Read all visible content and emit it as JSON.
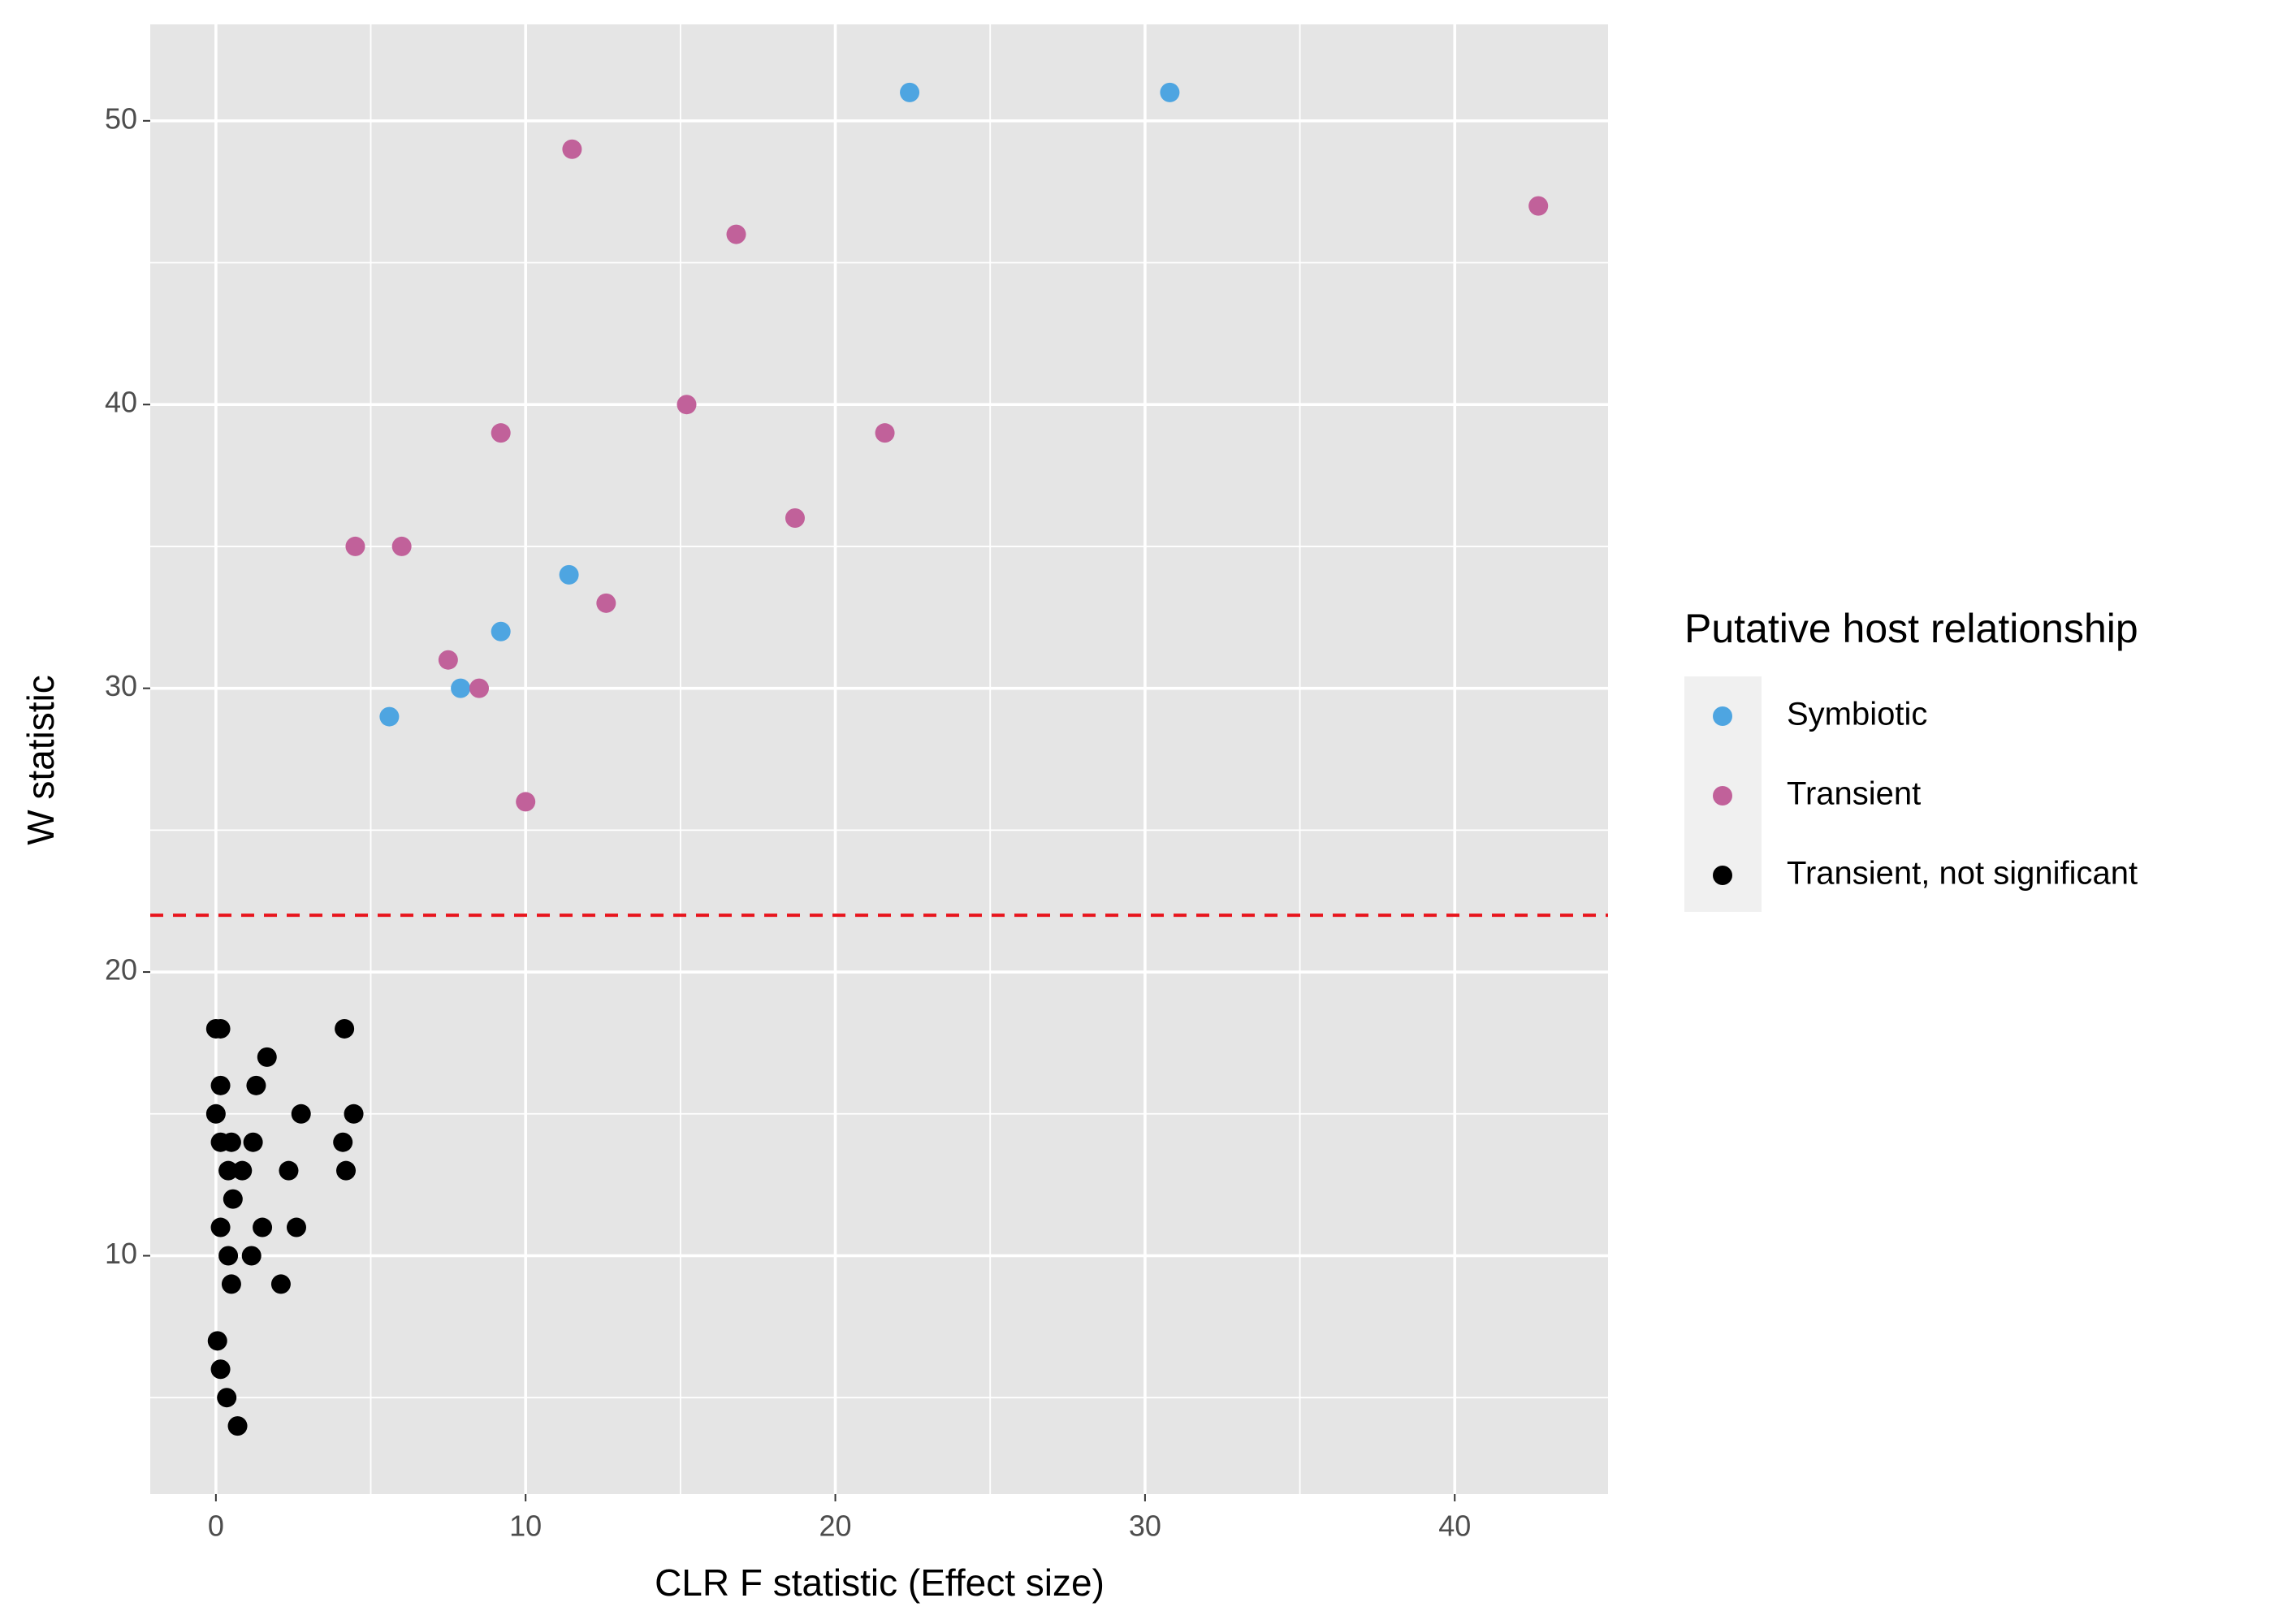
{
  "chart_data": {
    "type": "scatter",
    "x_label": "CLR F statistic (Effect size)",
    "y_label": "W statistic",
    "legend_title": "Putative host relationship",
    "legend_position": "right",
    "grid": true,
    "xlim": [
      -2.12,
      44.95
    ],
    "ylim": [
      1.6,
      53.4
    ],
    "xticks": [
      0,
      10,
      20,
      30,
      40
    ],
    "yticks": [
      10,
      20,
      30,
      40,
      50
    ],
    "xminor": [
      5,
      15,
      25,
      35
    ],
    "yminor": [
      5,
      15,
      25,
      35,
      45
    ],
    "hline": {
      "value": 22,
      "color": "#e8141c"
    },
    "series": [
      {
        "name": "Symbiotic",
        "color": "#4ea5e1",
        "x": [
          22.4,
          30.8,
          11.4,
          9.2,
          7.9,
          5.6
        ],
        "values": [
          51,
          51,
          34,
          32,
          30,
          29
        ]
      },
      {
        "name": "Transient",
        "color": "#c1619a",
        "x": [
          11.5,
          42.7,
          16.8,
          15.2,
          9.2,
          21.6,
          18.7,
          4.5,
          6.0,
          12.6,
          7.5,
          8.5,
          10.0
        ],
        "values": [
          49,
          47,
          46,
          40,
          39,
          39,
          36,
          35,
          35,
          33,
          31,
          30,
          26
        ]
      },
      {
        "name": "Transient, not significant",
        "color": "#000000",
        "x": [
          0,
          0.15,
          4.15,
          1.65,
          0.15,
          1.3,
          0,
          2.75,
          4.45,
          0.15,
          0.5,
          1.2,
          4.1,
          0.4,
          0.85,
          2.35,
          4.2,
          0.55,
          0.15,
          1.5,
          2.6,
          0.4,
          1.15,
          0.5,
          2.1,
          0.05,
          0.15,
          0.35,
          0.7
        ],
        "values": [
          18,
          18,
          18,
          17,
          16,
          16,
          15,
          15,
          15,
          14,
          14,
          14,
          14,
          13,
          13,
          13,
          13,
          12,
          11,
          11,
          11,
          10,
          10,
          9,
          9,
          7,
          6,
          5,
          4
        ]
      }
    ]
  }
}
